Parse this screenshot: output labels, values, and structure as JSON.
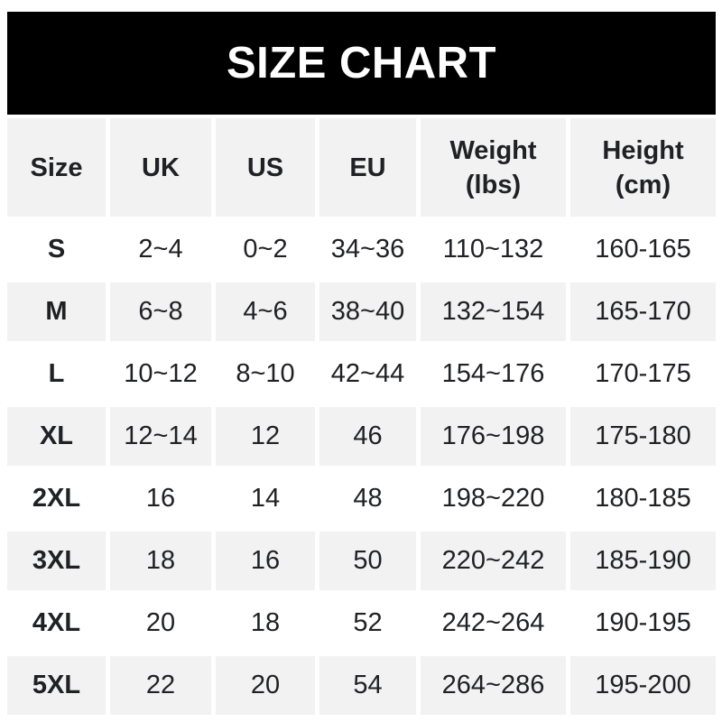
{
  "title": "SIZE CHART",
  "colors": {
    "title_bar_bg": "#000000",
    "title_text": "#ffffff",
    "alt_row_bg": "#f2f2f2",
    "row_bg": "#ffffff",
    "text": "#202124"
  },
  "chart_data": {
    "type": "table",
    "title": "SIZE CHART",
    "columns": [
      "Size",
      "UK",
      "US",
      "EU",
      "Weight (lbs)",
      "Height (cm)"
    ],
    "rows": [
      [
        "S",
        "2~4",
        "0~2",
        "34~36",
        "110~132",
        "160-165"
      ],
      [
        "M",
        "6~8",
        "4~6",
        "38~40",
        "132~154",
        "165-170"
      ],
      [
        "L",
        "10~12",
        "8~10",
        "42~44",
        "154~176",
        "170-175"
      ],
      [
        "XL",
        "12~14",
        "12",
        "46",
        "176~198",
        "175-180"
      ],
      [
        "2XL",
        "16",
        "14",
        "48",
        "198~220",
        "180-185"
      ],
      [
        "3XL",
        "18",
        "16",
        "50",
        "220~242",
        "185-190"
      ],
      [
        "4XL",
        "20",
        "18",
        "52",
        "242~264",
        "190-195"
      ],
      [
        "5XL",
        "22",
        "20",
        "54",
        "264~286",
        "195-200"
      ]
    ],
    "layout": {
      "header_row_shaded": true,
      "alternating_shaded_rows": [
        "M",
        "XL",
        "3XL",
        "5XL"
      ],
      "grid": "off"
    }
  },
  "table": {
    "headers": [
      {
        "line1": "Size",
        "line2": ""
      },
      {
        "line1": "UK",
        "line2": ""
      },
      {
        "line1": "US",
        "line2": ""
      },
      {
        "line1": "EU",
        "line2": ""
      },
      {
        "line1": "Weight",
        "line2": "(lbs)"
      },
      {
        "line1": "Height",
        "line2": "(cm)"
      }
    ]
  }
}
